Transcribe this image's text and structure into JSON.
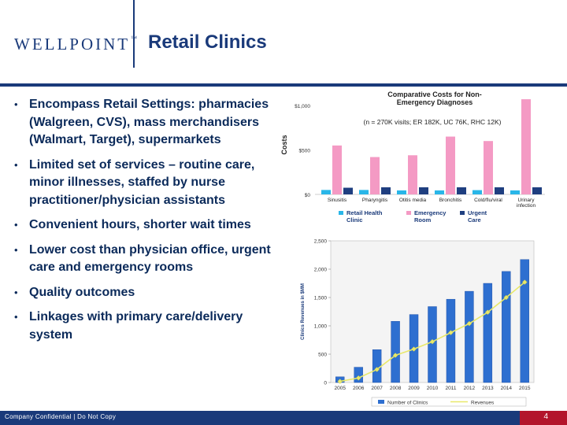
{
  "header": {
    "logo_text": "WELLPOINT",
    "logo_mark": "™",
    "title": "Retail Clinics"
  },
  "bullets": [
    "Encompass Retail Settings: pharmacies (Walgreen, CVS), mass merchandisers (Walmart, Target), supermarkets",
    "Limited set of services – routine care, minor illnesses, staffed by nurse practitioner/physician assistants",
    "Convenient hours, shorter wait times",
    "Lower cost than physician office, urgent care and emergency rooms",
    "Quality outcomes",
    "Linkages with primary care/delivery system"
  ],
  "bullet_symbol": "•",
  "footer": {
    "text": "Company Confidential | Do Not Copy",
    "page": "4"
  },
  "colors": {
    "brand_navy": "#1a3a7a",
    "accent_red": "#b3152b",
    "retail": "#29b6e8",
    "emergency": "#f49ac4",
    "urgent": "#1f3f80",
    "clinics_bar": "#2e6fd0",
    "revenue_line": "#e8e86a"
  },
  "chart_data": [
    {
      "type": "bar",
      "title": "Comparative Costs for Non-Emergency Diagnoses",
      "subtitle": "(n = 270K visits; ER 182K, UC 76K, RHC 12K)",
      "ylabel": "Costs",
      "ylim": [
        0,
        1000
      ],
      "yticks": [
        0,
        500,
        1000
      ],
      "ytick_labels": [
        "$0",
        "$500",
        "$1,000"
      ],
      "categories": [
        "Sinusitis",
        "Pharyngitis",
        "Otitis media",
        "Bronchitis",
        "Cold/flu/viral",
        "Urinary infection"
      ],
      "series": [
        {
          "name": "Retail Health Clinic",
          "values": [
            50,
            50,
            45,
            45,
            48,
            45
          ]
        },
        {
          "name": "Emergency Room",
          "values": [
            550,
            420,
            440,
            650,
            600,
            1070
          ]
        },
        {
          "name": "Urgent Care",
          "values": [
            75,
            80,
            80,
            80,
            80,
            80
          ]
        }
      ],
      "legend": "bottom"
    },
    {
      "type": "bar",
      "ylabel": "Clinics Revenues in $MM",
      "ylim": [
        0,
        2500
      ],
      "yticks": [
        0,
        500,
        1000,
        1500,
        2000,
        2500
      ],
      "ytick_labels": [
        "0",
        "500",
        "1,000",
        "1,500",
        "2,000",
        "2,500"
      ],
      "categories": [
        "2005",
        "2006",
        "2007",
        "2008",
        "2009",
        "2010",
        "2011",
        "2012",
        "2013",
        "2014",
        "2015"
      ],
      "series": [
        {
          "name": "Number of Clinics",
          "type": "bar",
          "values": [
            100,
            270,
            580,
            1080,
            1200,
            1340,
            1470,
            1610,
            1750,
            1960,
            2170
          ]
        },
        {
          "name": "Revenues",
          "type": "line",
          "values": [
            20,
            80,
            230,
            480,
            590,
            720,
            880,
            1040,
            1240,
            1500,
            1770
          ]
        }
      ],
      "legend": "bottom"
    }
  ]
}
